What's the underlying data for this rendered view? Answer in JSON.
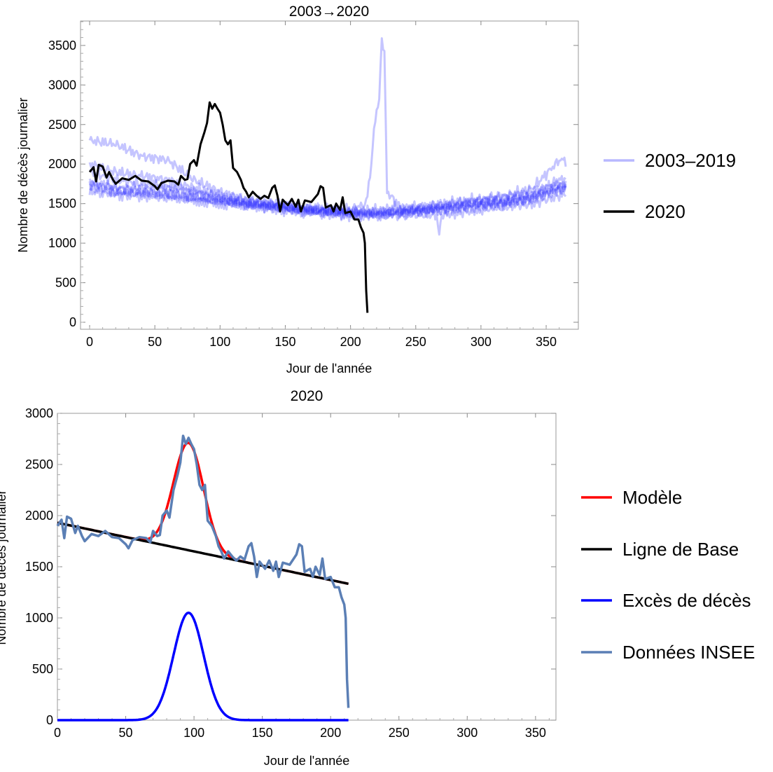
{
  "chart_data": [
    {
      "type": "line",
      "title": "2003→2020",
      "xlabel": "Jour de l'année",
      "ylabel": "Nombre de décès journalier",
      "xlim": [
        -5,
        375
      ],
      "ylim": [
        -90,
        3800
      ],
      "xticks": [
        0,
        50,
        100,
        150,
        200,
        250,
        300,
        350
      ],
      "yticks": [
        0,
        500,
        1000,
        1500,
        2000,
        2500,
        3000,
        3500
      ],
      "legend": {
        "placement": "right",
        "entries": [
          {
            "label": "2003–2019",
            "color": "#b8b8ff"
          },
          {
            "label": "2020",
            "color": "#000000"
          }
        ]
      },
      "background_series_name": "2003–2019",
      "background_color": "#3030ff",
      "background_series": [
        {
          "step": 20,
          "values": [
            2300,
            2250,
            2100,
            2050,
            1800,
            1650,
            1550,
            1500,
            1450,
            1420,
            1400,
            1380,
            1400,
            1450,
            1500,
            1550,
            1600,
            1700,
            2050
          ]
        },
        {
          "step": 20,
          "values": [
            2000,
            1900,
            1850,
            1800,
            1700,
            1600,
            1500,
            1480,
            1420,
            1400,
            1380,
            1380,
            1420,
            1450,
            1480,
            1520,
            1560,
            1620,
            1800
          ]
        },
        {
          "step": 20,
          "values": [
            1750,
            1650,
            1650,
            1650,
            1600,
            1550,
            1500,
            1450,
            1400,
            1380,
            1350,
            1350,
            1380,
            1420,
            1450,
            1500,
            1500,
            1580,
            1700
          ]
        },
        {
          "step": 20,
          "values": [
            1900,
            1800,
            1750,
            1700,
            1650,
            1580,
            1550,
            1500,
            1450,
            1420,
            1400,
            1420,
            1450,
            1480,
            1520,
            1560,
            1600,
            1650,
            1750
          ]
        },
        {
          "step": 20,
          "values": [
            1800,
            1700,
            1700,
            1720,
            1650,
            1560,
            1500,
            1470,
            1430,
            1400,
            1380,
            1380,
            1400,
            1430,
            1470,
            1500,
            1540,
            1600,
            1720
          ]
        },
        {
          "step": 20,
          "values": [
            1700,
            1620,
            1620,
            1600,
            1560,
            1500,
            1470,
            1440,
            1400,
            1380,
            1360,
            1360,
            1390,
            1420,
            1460,
            1490,
            1520,
            1580,
            1680
          ]
        },
        {
          "points": [
            [
              0,
              1650
            ],
            [
              40,
              1600
            ],
            [
              80,
              1550
            ],
            [
              120,
              1480
            ],
            [
              160,
              1420
            ],
            [
              200,
              1380
            ],
            [
              240,
              1350
            ],
            [
              266,
              1360
            ],
            [
              268,
              1100
            ],
            [
              270,
              1360
            ],
            [
              300,
              1420
            ],
            [
              340,
              1500
            ],
            [
              364,
              1620
            ]
          ]
        },
        {
          "points": [
            [
              0,
              1750
            ],
            [
              40,
              1650
            ],
            [
              80,
              1550
            ],
            [
              120,
              1500
            ],
            [
              160,
              1450
            ],
            [
              200,
              1420
            ],
            [
              212,
              1500
            ],
            [
              216,
              2000
            ],
            [
              219,
              2600
            ],
            [
              222,
              2800
            ],
            [
              224,
              3600
            ],
            [
              226,
              3400
            ],
            [
              228,
              1650
            ],
            [
              240,
              1420
            ],
            [
              270,
              1400
            ],
            [
              300,
              1450
            ],
            [
              340,
              1550
            ],
            [
              364,
              1700
            ]
          ]
        }
      ],
      "series_2020": {
        "name": "2020",
        "color": "#000000",
        "points": [
          [
            0,
            1900
          ],
          [
            3,
            1960
          ],
          [
            5,
            1780
          ],
          [
            7,
            1990
          ],
          [
            10,
            1970
          ],
          [
            13,
            1830
          ],
          [
            15,
            1900
          ],
          [
            18,
            1800
          ],
          [
            20,
            1750
          ],
          [
            25,
            1820
          ],
          [
            30,
            1800
          ],
          [
            35,
            1850
          ],
          [
            40,
            1790
          ],
          [
            45,
            1780
          ],
          [
            50,
            1720
          ],
          [
            52,
            1680
          ],
          [
            55,
            1760
          ],
          [
            60,
            1790
          ],
          [
            65,
            1780
          ],
          [
            68,
            1740
          ],
          [
            70,
            1850
          ],
          [
            73,
            1800
          ],
          [
            75,
            1810
          ],
          [
            77,
            2000
          ],
          [
            80,
            2050
          ],
          [
            82,
            1980
          ],
          [
            85,
            2250
          ],
          [
            88,
            2400
          ],
          [
            90,
            2520
          ],
          [
            92,
            2780
          ],
          [
            94,
            2700
          ],
          [
            96,
            2760
          ],
          [
            98,
            2700
          ],
          [
            100,
            2650
          ],
          [
            102,
            2500
          ],
          [
            104,
            2300
          ],
          [
            106,
            2250
          ],
          [
            108,
            2300
          ],
          [
            110,
            1950
          ],
          [
            113,
            1900
          ],
          [
            116,
            1800
          ],
          [
            118,
            1700
          ],
          [
            120,
            1650
          ],
          [
            122,
            1580
          ],
          [
            125,
            1650
          ],
          [
            128,
            1600
          ],
          [
            131,
            1560
          ],
          [
            134,
            1600
          ],
          [
            137,
            1570
          ],
          [
            140,
            1700
          ],
          [
            142,
            1730
          ],
          [
            144,
            1600
          ],
          [
            146,
            1400
          ],
          [
            148,
            1550
          ],
          [
            152,
            1480
          ],
          [
            155,
            1560
          ],
          [
            158,
            1460
          ],
          [
            160,
            1550
          ],
          [
            162,
            1400
          ],
          [
            165,
            1540
          ],
          [
            170,
            1520
          ],
          [
            175,
            1620
          ],
          [
            177,
            1720
          ],
          [
            179,
            1700
          ],
          [
            181,
            1450
          ],
          [
            185,
            1480
          ],
          [
            187,
            1400
          ],
          [
            189,
            1500
          ],
          [
            192,
            1420
          ],
          [
            194,
            1580
          ],
          [
            196,
            1380
          ],
          [
            200,
            1400
          ],
          [
            203,
            1300
          ],
          [
            206,
            1300
          ],
          [
            208,
            1200
          ],
          [
            210,
            1130
          ],
          [
            211,
            1000
          ],
          [
            212,
            400
          ],
          [
            213,
            120
          ]
        ]
      }
    },
    {
      "type": "line",
      "title": "2020",
      "xlabel": "Jour de l'année",
      "ylabel": "Nombre de décès journalier",
      "xlim": [
        0,
        365
      ],
      "ylim": [
        0,
        3000
      ],
      "xticks": [
        0,
        50,
        100,
        150,
        200,
        250,
        300,
        350
      ],
      "yticks": [
        0,
        500,
        1000,
        1500,
        2000,
        2500,
        3000
      ],
      "legend": {
        "placement": "right",
        "entries": [
          {
            "label": "Modèle",
            "color": "#ff0000"
          },
          {
            "label": "Ligne de Base",
            "color": "#000000"
          },
          {
            "label": "Excès de décès",
            "color": "#0000ff"
          },
          {
            "label": "Données INSEE",
            "color": "#5b7fb5"
          }
        ]
      },
      "baseline": {
        "intercept": 1930,
        "slope": -2.8,
        "x_range": [
          0,
          213
        ]
      },
      "excess": {
        "peak": 1050,
        "center": 96,
        "sigma": 11,
        "x_range": [
          0,
          213
        ]
      }
    }
  ]
}
